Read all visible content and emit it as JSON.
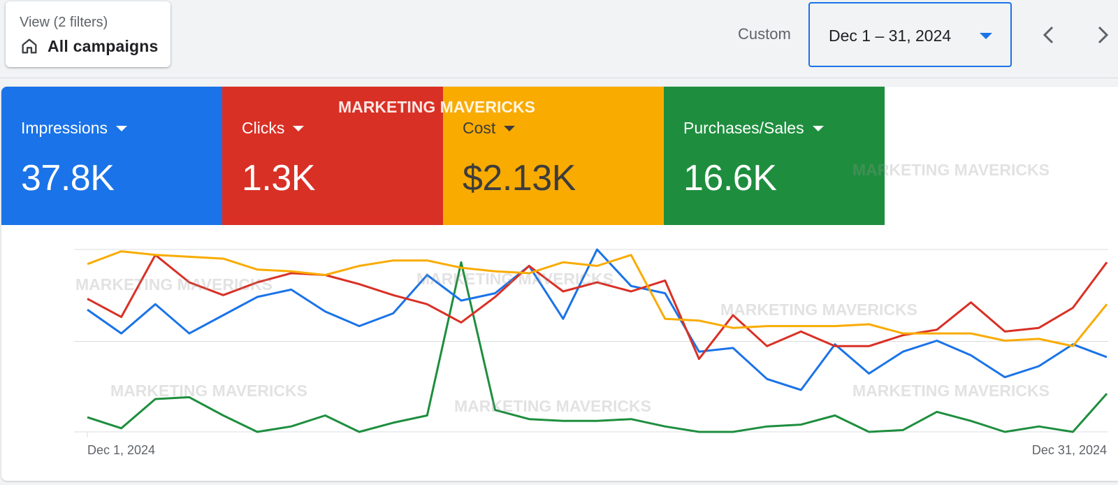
{
  "view": {
    "label": "View (2 filters)",
    "value": "All campaigns"
  },
  "date_range": {
    "mode_label": "Custom",
    "value": "Dec 1 – 31, 2024"
  },
  "metrics": [
    {
      "label": "Impressions",
      "value": "37.8K",
      "color": "#1a73e8"
    },
    {
      "label": "Clicks",
      "value": "1.3K",
      "color": "#d93025"
    },
    {
      "label": "Cost",
      "value": "$2.13K",
      "color": "#f9ab00"
    },
    {
      "label": "Purchases/Sales",
      "value": "16.6K",
      "color": "#1e8e3e"
    }
  ],
  "watermark_text": "MARKETING MAVERICKS",
  "chart_data": {
    "type": "line",
    "x_labels": [
      "Dec 1, 2024",
      "Dec 31, 2024"
    ],
    "x_start": "Dec 1, 2024",
    "x_end": "Dec 31, 2024",
    "grid": true,
    "legend": "metric cards above chart",
    "series": [
      {
        "name": "Impressions",
        "color": "#1a73e8",
        "values": [
          67,
          54,
          70,
          54,
          64,
          74,
          78,
          66,
          58,
          65,
          86,
          72,
          76,
          91,
          62,
          100,
          80,
          76,
          44,
          46,
          29,
          23,
          48,
          32,
          44,
          50,
          42,
          30,
          36,
          48,
          41
        ]
      },
      {
        "name": "Clicks",
        "color": "#d93025",
        "values": [
          73,
          63,
          97,
          82,
          75,
          82,
          87,
          86,
          81,
          75,
          70,
          60,
          74,
          91,
          77,
          82,
          77,
          83,
          40,
          64,
          47,
          55,
          47,
          47,
          53,
          56,
          71,
          55,
          57,
          68,
          93
        ]
      },
      {
        "name": "Cost",
        "color": "#f9ab00",
        "values": [
          92,
          99,
          97,
          96,
          95,
          89,
          88,
          86,
          91,
          94,
          94,
          90,
          88,
          87,
          93,
          91,
          97,
          62,
          61,
          57,
          58,
          58,
          58,
          59,
          54,
          54,
          54,
          50,
          51,
          47,
          70
        ]
      },
      {
        "name": "Purchases/Sales",
        "color": "#1e8e3e",
        "values": [
          8,
          2,
          18,
          19,
          9,
          0,
          3,
          9,
          0,
          5,
          9,
          93,
          12,
          7,
          6,
          6,
          7,
          3,
          0,
          0,
          3,
          4,
          9,
          0,
          1,
          11,
          6,
          0,
          3,
          0,
          21
        ]
      }
    ]
  }
}
